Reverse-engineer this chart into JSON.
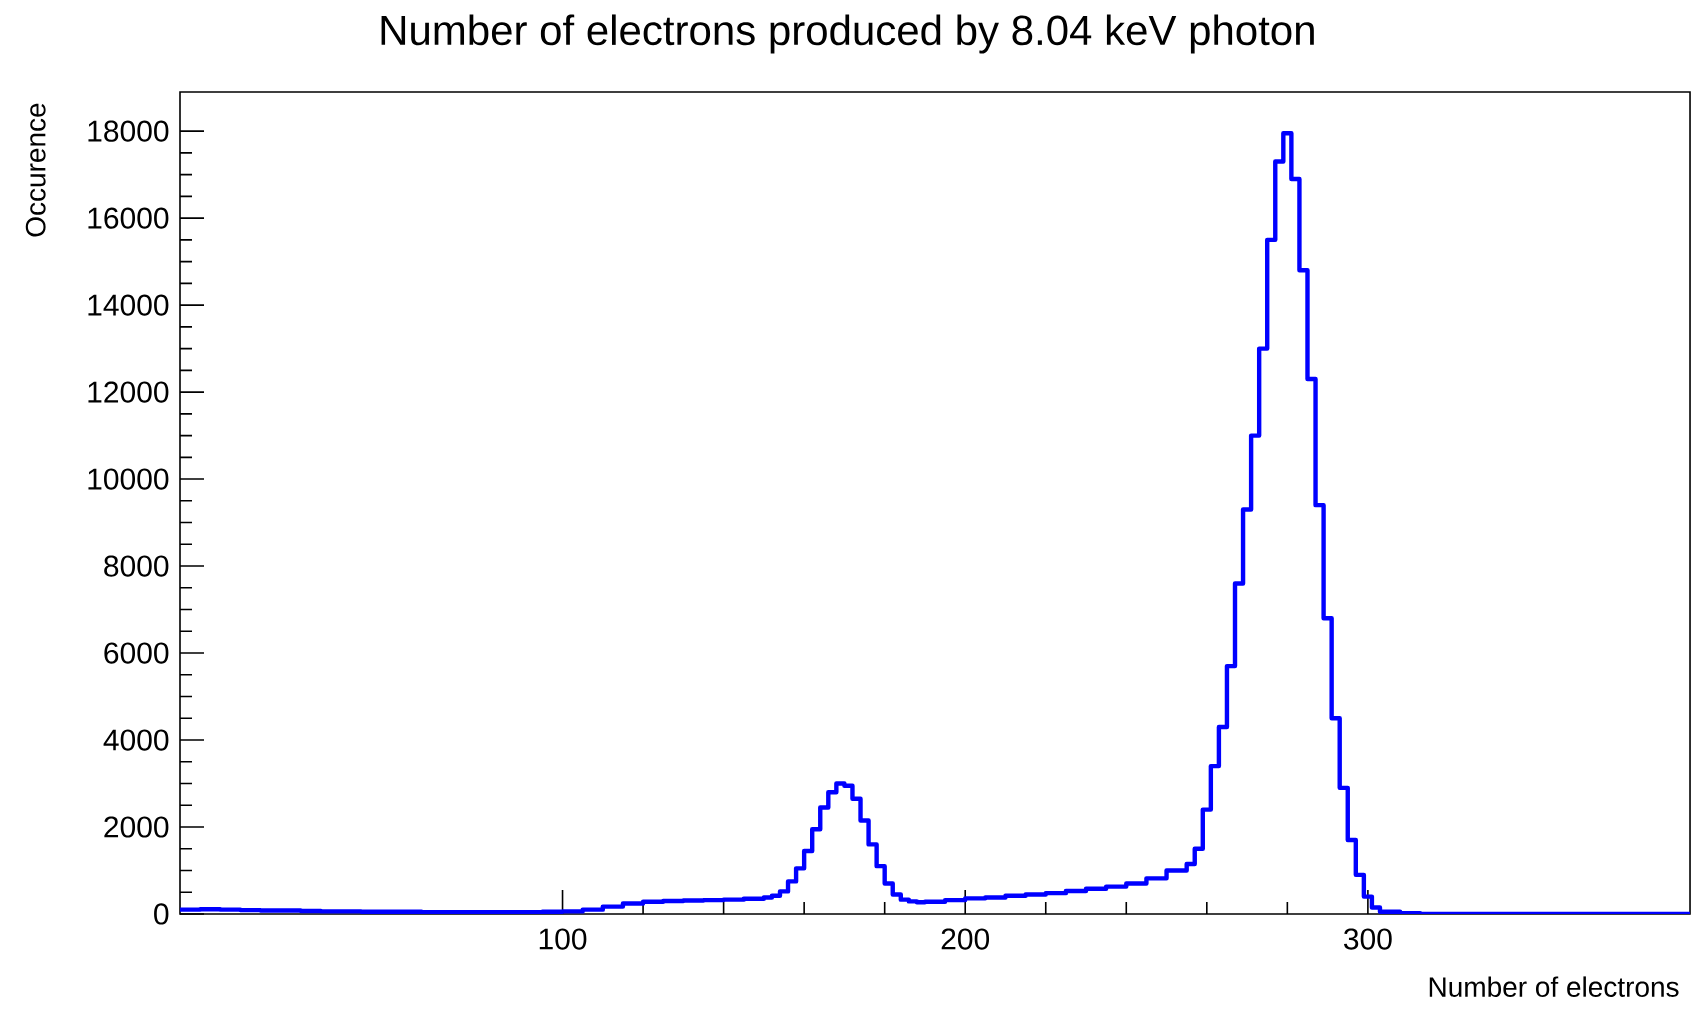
{
  "chart_data": {
    "type": "histogram",
    "title": "Number of electrons produced by 8.04 keV photon",
    "xlabel": "Number of electrons",
    "ylabel": "Occurence",
    "color": "#0000ff",
    "bins": [
      5,
      10,
      15,
      20,
      25,
      30,
      35,
      40,
      45,
      50,
      55,
      60,
      65,
      70,
      75,
      80,
      85,
      90,
      95,
      100,
      105,
      110,
      115,
      120,
      125,
      130,
      135,
      140,
      145,
      150,
      152,
      154,
      156,
      158,
      160,
      162,
      164,
      166,
      168,
      170,
      172,
      174,
      176,
      178,
      180,
      182,
      184,
      186,
      188,
      190,
      195,
      200,
      205,
      210,
      215,
      220,
      225,
      230,
      235,
      240,
      245,
      250,
      255,
      257,
      259,
      261,
      263,
      265,
      267,
      269,
      271,
      273,
      275,
      277,
      279,
      281,
      283,
      285,
      287,
      289,
      291,
      293,
      295,
      297,
      299,
      301,
      303,
      308,
      313,
      318,
      323,
      328,
      333,
      338,
      343,
      348,
      353,
      358,
      363,
      368,
      373,
      378,
      380
    ],
    "values": [
      100,
      110,
      100,
      90,
      80,
      80,
      70,
      60,
      60,
      50,
      50,
      50,
      40,
      40,
      40,
      40,
      40,
      40,
      50,
      60,
      100,
      170,
      240,
      280,
      300,
      310,
      320,
      330,
      350,
      380,
      420,
      520,
      750,
      1050,
      1450,
      1950,
      2450,
      2800,
      3000,
      2950,
      2650,
      2150,
      1600,
      1100,
      700,
      450,
      330,
      290,
      270,
      280,
      320,
      360,
      380,
      420,
      450,
      480,
      530,
      580,
      630,
      700,
      820,
      1000,
      1150,
      1500,
      2400,
      3400,
      4300,
      5700,
      7600,
      9300,
      11000,
      13000,
      15500,
      17300,
      17950,
      16900,
      14800,
      12300,
      9400,
      6800,
      4500,
      2900,
      1700,
      900,
      400,
      150,
      50,
      20,
      0,
      0,
      0,
      0,
      0,
      0,
      0,
      0,
      0,
      0,
      0,
      0,
      0,
      0
    ],
    "xlim": [
      5,
      380
    ],
    "ylim": [
      0,
      18900
    ],
    "xticks": [
      100,
      200,
      300
    ],
    "yticks": [
      0,
      2000,
      4000,
      6000,
      8000,
      10000,
      12000,
      14000,
      16000,
      18000
    ]
  }
}
